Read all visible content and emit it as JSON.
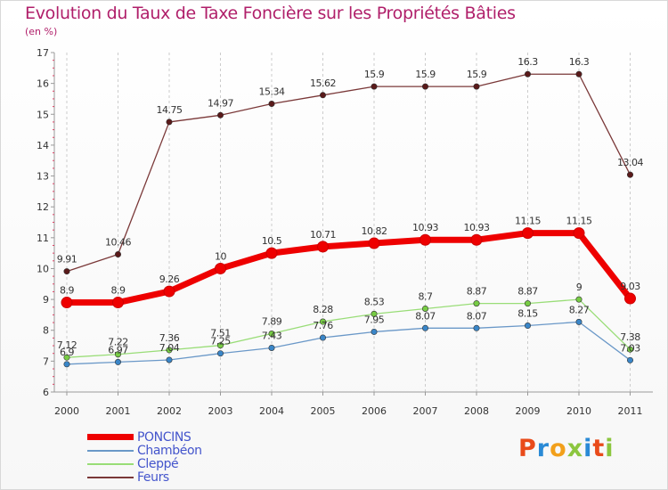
{
  "header": {
    "title": "Evolution du Taux de Taxe Foncière sur les Propriétés Bâties",
    "subtitle": "(en %)"
  },
  "brand": {
    "text": "Proxiti",
    "colors": [
      "#e94b1a",
      "#2a8ad6",
      "#f2a01b",
      "#8cc63e",
      "#2a8ad6",
      "#e94b1a",
      "#8cc63e"
    ]
  },
  "chart_data": {
    "type": "line",
    "title": "Evolution du Taux de Taxe Foncière sur les Propriétés Bâties",
    "ylabel": "(en %)",
    "xlabel": "",
    "categories": [
      "2000",
      "2001",
      "2002",
      "2003",
      "2004",
      "2005",
      "2006",
      "2007",
      "2008",
      "2009",
      "2010",
      "2011"
    ],
    "ylim": [
      6,
      17
    ],
    "yticks": [
      6,
      7,
      8,
      9,
      10,
      11,
      12,
      13,
      14,
      15,
      16,
      17
    ],
    "grid": "vertical dashed",
    "legend_position": "bottom-left",
    "series": [
      {
        "name": "PONCINS",
        "color": "#ee0000",
        "marker": "#ee0000",
        "labelColor": "#333333",
        "values": [
          8.9,
          8.9,
          9.26,
          10,
          10.5,
          10.71,
          10.82,
          10.93,
          10.93,
          11.15,
          11.15,
          9.03
        ],
        "labels": [
          "8.9",
          "8.9",
          "9.26",
          "10",
          "10.5",
          "10.71",
          "10.82",
          "10.93",
          "10.93",
          "11.15",
          "11.15",
          "9.03"
        ]
      },
      {
        "name": "Chambéon",
        "color": "#6a98c8",
        "marker": "#3a86c8",
        "labelColor": "#333333",
        "values": [
          6.9,
          6.97,
          7.04,
          7.25,
          7.43,
          7.76,
          7.95,
          8.07,
          8.07,
          8.15,
          8.27,
          7.03
        ],
        "labels": [
          "6.9",
          "6.97",
          "7.04",
          "7.25",
          "7.43",
          "7.76",
          "7.95",
          "8.07",
          "8.07",
          "8.15",
          "8.27",
          "7.03"
        ]
      },
      {
        "name": "Cleppé",
        "color": "#99dd77",
        "marker": "#77cc44",
        "labelColor": "#333333",
        "values": [
          7.12,
          7.22,
          7.36,
          7.51,
          7.89,
          8.28,
          8.53,
          8.7,
          8.87,
          8.87,
          9,
          7.38
        ],
        "labels": [
          "7.12",
          "7.22",
          "7.36",
          "7.51",
          "7.89",
          "8.28",
          "8.53",
          "8.7",
          "8.87",
          "8.87",
          "9",
          "7.38"
        ]
      },
      {
        "name": "Feurs",
        "color": "#7a3838",
        "marker": "#5a1a1a",
        "labelColor": "#333333",
        "values": [
          9.91,
          10.46,
          14.75,
          14.97,
          15.34,
          15.62,
          15.9,
          15.9,
          15.9,
          16.3,
          16.3,
          13.04
        ],
        "labels": [
          "9.91",
          "10.46",
          "14.75",
          "14.97",
          "15.34",
          "15.62",
          "15.9",
          "15.9",
          "15.9",
          "16.3",
          "16.3",
          "13.04"
        ]
      }
    ]
  }
}
